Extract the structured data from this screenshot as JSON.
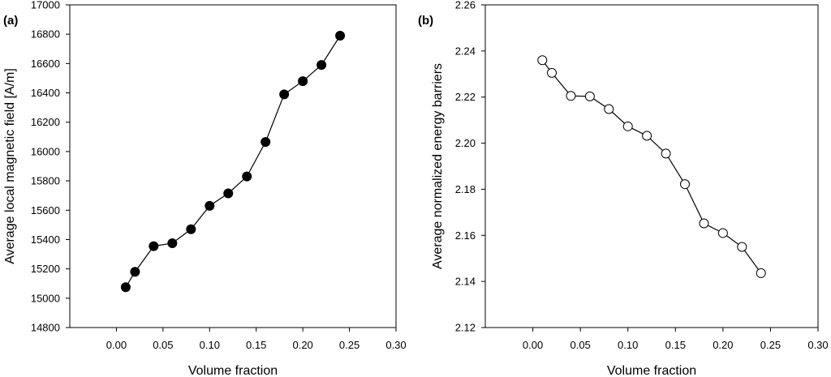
{
  "chart_data": [
    {
      "type": "line",
      "panel_label": "(a)",
      "title": "",
      "xlabel": "Volume fraction",
      "ylabel": "Average local magnetic field [A/m]",
      "xlim": [
        -0.05,
        0.3
      ],
      "ylim": [
        14800,
        17000
      ],
      "x_ticks": [
        "0.00",
        "0.05",
        "0.10",
        "0.15",
        "0.20",
        "0.25",
        "0.30"
      ],
      "y_ticks": [
        "14800",
        "15000",
        "15200",
        "15400",
        "15600",
        "15800",
        "16000",
        "16200",
        "16400",
        "16600",
        "16800",
        "17000"
      ],
      "grid": false,
      "marker": "filled-circle",
      "series": [
        {
          "x": [
            0.01,
            0.02,
            0.04,
            0.06,
            0.08,
            0.1,
            0.12,
            0.14,
            0.16,
            0.18,
            0.2,
            0.22,
            0.24
          ],
          "values": [
            15075,
            15180,
            15355,
            15375,
            15470,
            15630,
            15715,
            15830,
            16065,
            16390,
            16480,
            16590,
            16790
          ]
        }
      ]
    },
    {
      "type": "line",
      "panel_label": "(b)",
      "title": "",
      "xlabel": "Volume fraction",
      "ylabel": "Average normalized energy barriers",
      "xlim": [
        -0.05,
        0.3
      ],
      "ylim": [
        2.12,
        2.26
      ],
      "x_ticks": [
        "0.00",
        "0.05",
        "0.10",
        "0.15",
        "0.20",
        "0.25",
        "0.30"
      ],
      "y_ticks": [
        "2.12",
        "2.14",
        "2.16",
        "2.18",
        "2.20",
        "2.22",
        "2.24",
        "2.26"
      ],
      "grid": false,
      "marker": "open-circle",
      "series": [
        {
          "x": [
            0.01,
            0.02,
            0.04,
            0.06,
            0.08,
            0.1,
            0.12,
            0.14,
            0.16,
            0.18,
            0.2,
            0.22,
            0.24
          ],
          "values": [
            2.236,
            2.2305,
            2.2205,
            2.2203,
            2.2148,
            2.2073,
            2.2032,
            2.1955,
            2.1822,
            2.1652,
            2.161,
            2.155,
            2.1436
          ]
        }
      ]
    }
  ]
}
